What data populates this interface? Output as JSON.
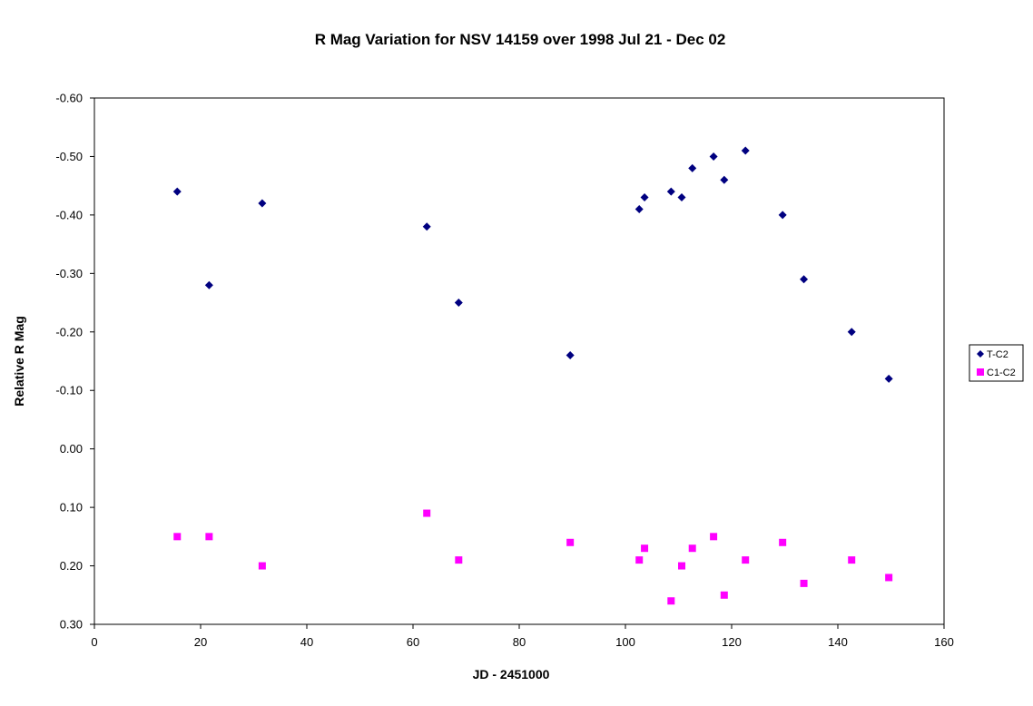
{
  "chart_data": {
    "type": "scatter",
    "title": "R Mag Variation for NSV 14159 over 1998 Jul 21 - Dec 02",
    "xlabel": "JD - 2451000",
    "ylabel": "Relative R Mag",
    "xlim": [
      0,
      160
    ],
    "ylim": [
      -0.6,
      0.3
    ],
    "y_inverted": true,
    "grid": false,
    "legend_position": "right",
    "x_ticks": [
      0,
      20,
      40,
      60,
      80,
      100,
      120,
      140,
      160
    ],
    "x_tick_labels": [
      "0",
      "20",
      "40",
      "60",
      "80",
      "100",
      "120",
      "140",
      "160"
    ],
    "y_ticks": [
      -0.6,
      -0.5,
      -0.4,
      -0.3,
      -0.2,
      -0.1,
      0.0,
      0.1,
      0.2,
      0.3
    ],
    "y_tick_labels": [
      "-0.60",
      "-0.50",
      "-0.40",
      "-0.30",
      "-0.20",
      "-0.10",
      "0.00",
      "0.10",
      "0.20",
      "0.30"
    ],
    "series": [
      {
        "name": "T-C2",
        "marker": "diamond",
        "color": "#000080",
        "points": [
          [
            15.6,
            -0.44
          ],
          [
            21.6,
            -0.28
          ],
          [
            31.6,
            -0.42
          ],
          [
            62.6,
            -0.38
          ],
          [
            68.6,
            -0.25
          ],
          [
            89.6,
            -0.16
          ],
          [
            102.6,
            -0.41
          ],
          [
            103.6,
            -0.43
          ],
          [
            108.6,
            -0.44
          ],
          [
            110.6,
            -0.43
          ],
          [
            112.6,
            -0.48
          ],
          [
            116.6,
            -0.5
          ],
          [
            118.6,
            -0.46
          ],
          [
            122.6,
            -0.51
          ],
          [
            129.6,
            -0.4
          ],
          [
            133.6,
            -0.29
          ],
          [
            142.6,
            -0.2
          ],
          [
            149.6,
            -0.12
          ]
        ]
      },
      {
        "name": "C1-C2",
        "marker": "square",
        "color": "#ff00ff",
        "points": [
          [
            15.6,
            0.15
          ],
          [
            21.6,
            0.15
          ],
          [
            31.6,
            0.2
          ],
          [
            62.6,
            0.11
          ],
          [
            68.6,
            0.19
          ],
          [
            89.6,
            0.16
          ],
          [
            102.6,
            0.19
          ],
          [
            103.6,
            0.17
          ],
          [
            108.6,
            0.26
          ],
          [
            110.6,
            0.2
          ],
          [
            112.6,
            0.17
          ],
          [
            116.6,
            0.15
          ],
          [
            118.6,
            0.25
          ],
          [
            122.6,
            0.19
          ],
          [
            129.6,
            0.16
          ],
          [
            133.6,
            0.23
          ],
          [
            142.6,
            0.19
          ],
          [
            149.6,
            0.22
          ]
        ]
      }
    ]
  }
}
